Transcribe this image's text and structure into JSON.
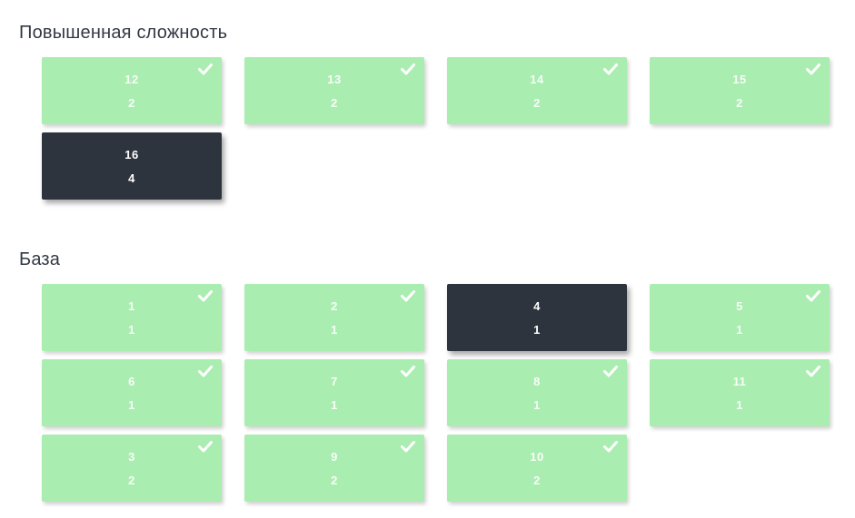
{
  "colors": {
    "card_green": "#aaedb0",
    "card_dark": "#2e343e",
    "card_text": "#ffffff",
    "heading": "#323944",
    "check": "#ffffff",
    "page_background": "#ffffff"
  },
  "icons": {
    "check": "check-icon"
  },
  "sections": [
    {
      "title": "Повышенная сложность",
      "cards": [
        {
          "number": "12",
          "score": "2",
          "variant": "green",
          "checked": true
        },
        {
          "number": "13",
          "score": "2",
          "variant": "green",
          "checked": true
        },
        {
          "number": "14",
          "score": "2",
          "variant": "green",
          "checked": true
        },
        {
          "number": "15",
          "score": "2",
          "variant": "green",
          "checked": true
        },
        {
          "number": "16",
          "score": "4",
          "variant": "dark",
          "checked": false
        }
      ]
    },
    {
      "title": "База",
      "cards": [
        {
          "number": "1",
          "score": "1",
          "variant": "green",
          "checked": true
        },
        {
          "number": "2",
          "score": "1",
          "variant": "green",
          "checked": true
        },
        {
          "number": "4",
          "score": "1",
          "variant": "dark",
          "checked": false
        },
        {
          "number": "5",
          "score": "1",
          "variant": "green",
          "checked": true
        },
        {
          "number": "6",
          "score": "1",
          "variant": "green",
          "checked": true
        },
        {
          "number": "7",
          "score": "1",
          "variant": "green",
          "checked": true
        },
        {
          "number": "8",
          "score": "1",
          "variant": "green",
          "checked": true
        },
        {
          "number": "11",
          "score": "1",
          "variant": "green",
          "checked": true
        },
        {
          "number": "3",
          "score": "2",
          "variant": "green",
          "checked": true
        },
        {
          "number": "9",
          "score": "2",
          "variant": "green",
          "checked": true
        },
        {
          "number": "10",
          "score": "2",
          "variant": "green",
          "checked": true
        }
      ]
    }
  ]
}
